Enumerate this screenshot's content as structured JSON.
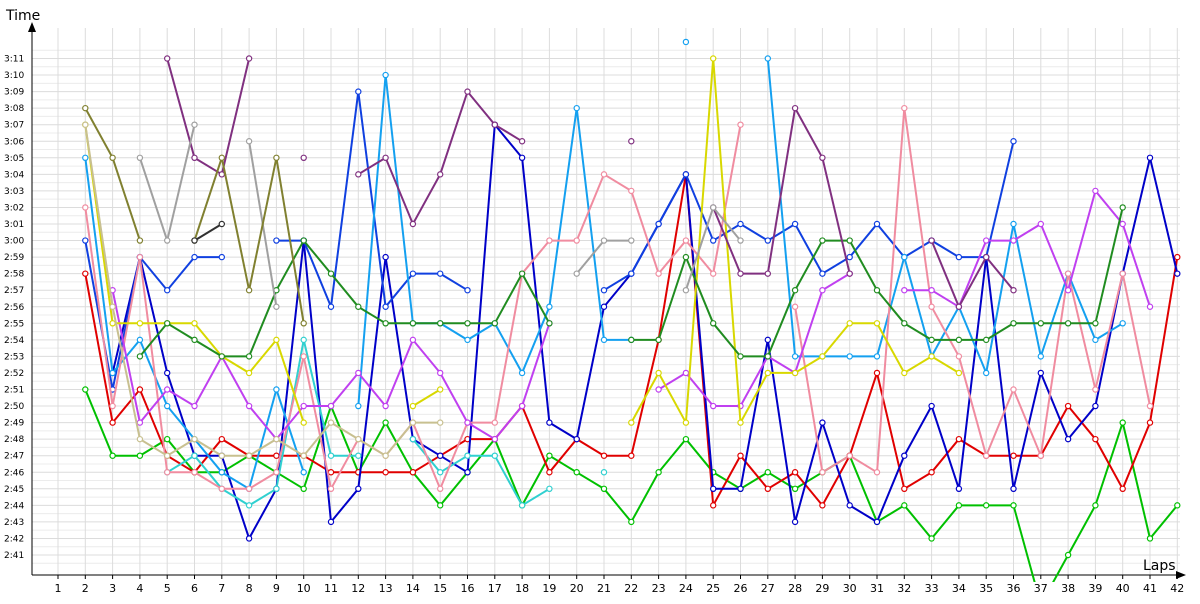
{
  "chart_data": {
    "type": "line",
    "ylabel": "Time",
    "xlabel": "Laps",
    "x": [
      1,
      2,
      3,
      4,
      5,
      6,
      7,
      8,
      9,
      10,
      11,
      12,
      13,
      14,
      15,
      16,
      17,
      18,
      19,
      20,
      21,
      22,
      23,
      24,
      25,
      26,
      27,
      28,
      29,
      30,
      31,
      32,
      33,
      34,
      35,
      36,
      37,
      38,
      39,
      40,
      41,
      42
    ],
    "x_ticks": [
      "1",
      "2",
      "3",
      "4",
      "5",
      "6",
      "7",
      "8",
      "9",
      "10",
      "11",
      "12",
      "13",
      "14",
      "15",
      "16",
      "17",
      "18",
      "19",
      "20",
      "21",
      "22",
      "23",
      "24",
      "25",
      "26",
      "27",
      "28",
      "29",
      "30",
      "31",
      "32",
      "33",
      "34",
      "35",
      "36",
      "37",
      "38",
      "39",
      "40",
      "41",
      "42"
    ],
    "y_ticks": [
      "2:41",
      "2:42",
      "2:43",
      "2:44",
      "2:45",
      "2:46",
      "2:47",
      "2:48",
      "2:49",
      "2:50",
      "2:51",
      "2:52",
      "2:53",
      "2:54",
      "2:55",
      "2:56",
      "2:57",
      "2:58",
      "2:59",
      "3:00",
      "3:01",
      "3:02",
      "3:03",
      "3:04",
      "3:05",
      "3:06",
      "3:07",
      "3:08",
      "3:09",
      "3:10",
      "3:11"
    ],
    "y_unit": "seconds",
    "ylim": [
      159,
      192
    ],
    "grid": true,
    "series": [
      {
        "color": "#00c000",
        "values": [
          null,
          171,
          167,
          167,
          168,
          166,
          166,
          167,
          166,
          165,
          170,
          166,
          169,
          166,
          164,
          166,
          168,
          164,
          167,
          166,
          165,
          163,
          166,
          168,
          166,
          165,
          166,
          165,
          166,
          167,
          163,
          164,
          162,
          164,
          164,
          164,
          158,
          161,
          164,
          169,
          162,
          164
        ]
      },
      {
        "color": "#e00000",
        "values": [
          null,
          178,
          169,
          171,
          167,
          166,
          168,
          167,
          167,
          167,
          166,
          166,
          166,
          166,
          167,
          168,
          168,
          170,
          166,
          168,
          167,
          167,
          174,
          184,
          164,
          167,
          165,
          166,
          164,
          167,
          172,
          165,
          166,
          168,
          167,
          167,
          167,
          170,
          168,
          165,
          169,
          179
        ]
      },
      {
        "color": "#0000c8",
        "values": [
          null,
          null,
          172,
          179,
          172,
          167,
          167,
          162,
          165,
          180,
          163,
          165,
          179,
          168,
          167,
          166,
          187,
          185,
          169,
          168,
          176,
          178,
          181,
          184,
          165,
          165,
          174,
          163,
          169,
          164,
          163,
          167,
          170,
          165,
          179,
          165,
          172,
          168,
          170,
          178,
          185,
          178
        ]
      },
      {
        "color": "#1040e0",
        "values": [
          null,
          180,
          171,
          179,
          177,
          179,
          179,
          null,
          180,
          180,
          176,
          189,
          176,
          178,
          178,
          177,
          null,
          null,
          null,
          null,
          177,
          178,
          181,
          184,
          180,
          181,
          180,
          181,
          178,
          179,
          181,
          179,
          180,
          179,
          179,
          186,
          null,
          null,
          null,
          null,
          null,
          null
        ]
      },
      {
        "color": "#14a0f0",
        "values": [
          null,
          185,
          172,
          174,
          170,
          168,
          166,
          165,
          171,
          166,
          null,
          170,
          190,
          175,
          175,
          174,
          175,
          172,
          176,
          188,
          174,
          174,
          null,
          192,
          null,
          null,
          191,
          173,
          173,
          173,
          173,
          179,
          173,
          176,
          172,
          181,
          173,
          178,
          174,
          175,
          null,
          null
        ]
      },
      {
        "color": "#30d0d0",
        "values": [
          null,
          null,
          null,
          null,
          166,
          167,
          165,
          164,
          165,
          174,
          167,
          167,
          null,
          168,
          166,
          167,
          167,
          164,
          165,
          null,
          166,
          null,
          null,
          null,
          null,
          null,
          null,
          null,
          null,
          null,
          null,
          null,
          null,
          null,
          null,
          null,
          null,
          null,
          null,
          null,
          null,
          null
        ]
      },
      {
        "color": "#f08ca0",
        "values": [
          null,
          182,
          170,
          179,
          166,
          166,
          165,
          165,
          166,
          173,
          165,
          168,
          167,
          169,
          165,
          169,
          169,
          178,
          180,
          180,
          184,
          183,
          178,
          180,
          178,
          187,
          null,
          176,
          166,
          167,
          166,
          188,
          176,
          173,
          167,
          171,
          167,
          178,
          171,
          178,
          170,
          null
        ]
      },
      {
        "color": "#c040f0",
        "values": [
          null,
          null,
          177,
          169,
          171,
          170,
          173,
          170,
          168,
          170,
          170,
          172,
          170,
          174,
          172,
          169,
          168,
          170,
          175,
          null,
          null,
          null,
          171,
          172,
          170,
          170,
          173,
          172,
          177,
          178,
          null,
          177,
          177,
          176,
          180,
          180,
          181,
          177,
          183,
          181,
          176,
          null
        ]
      },
      {
        "color": "#d8d800",
        "values": [
          null,
          187,
          175,
          175,
          175,
          175,
          173,
          172,
          174,
          169,
          null,
          null,
          null,
          170,
          171,
          null,
          null,
          null,
          null,
          null,
          null,
          169,
          172,
          169,
          191,
          169,
          172,
          172,
          173,
          175,
          175,
          172,
          173,
          172,
          null,
          null,
          null,
          null,
          null,
          null,
          null,
          null
        ]
      },
      {
        "color": "#208c20",
        "values": [
          null,
          null,
          null,
          173,
          175,
          174,
          173,
          173,
          177,
          180,
          178,
          176,
          175,
          175,
          175,
          175,
          175,
          178,
          175,
          null,
          null,
          174,
          174,
          179,
          175,
          173,
          173,
          177,
          180,
          180,
          177,
          175,
          174,
          174,
          174,
          175,
          175,
          175,
          175,
          182,
          null,
          null
        ]
      },
      {
        "color": "#803080",
        "values": [
          null,
          null,
          null,
          null,
          191,
          185,
          184,
          191,
          null,
          185,
          null,
          184,
          185,
          181,
          184,
          189,
          187,
          186,
          null,
          null,
          null,
          186,
          null,
          null,
          182,
          178,
          178,
          188,
          185,
          178,
          null,
          null,
          180,
          176,
          179,
          177,
          null,
          null,
          null,
          null,
          null,
          null
        ]
      },
      {
        "color": "#a0a0a0",
        "values": [
          null,
          null,
          null,
          185,
          180,
          187,
          null,
          186,
          176,
          null,
          null,
          null,
          null,
          null,
          null,
          null,
          null,
          null,
          null,
          178,
          180,
          180,
          null,
          177,
          182,
          180,
          null,
          null,
          null,
          null,
          null,
          null,
          null,
          null,
          null,
          null,
          null,
          null,
          null,
          null,
          null,
          null
        ]
      },
      {
        "color": "#808030",
        "values": [
          null,
          188,
          185,
          180,
          null,
          180,
          185,
          177,
          185,
          175,
          null,
          null,
          null,
          null,
          null,
          null,
          null,
          null,
          null,
          null,
          null,
          null,
          null,
          null,
          null,
          null,
          null,
          null,
          null,
          null,
          null,
          null,
          null,
          null,
          null,
          null,
          null,
          null,
          null,
          null,
          null,
          null
        ]
      },
      {
        "color": "#303030",
        "values": [
          null,
          null,
          null,
          null,
          null,
          180,
          181,
          null,
          null,
          null,
          null,
          null,
          null,
          null,
          null,
          null,
          null,
          null,
          null,
          null,
          null,
          null,
          null,
          null,
          null,
          null,
          null,
          null,
          null,
          null,
          null,
          null,
          null,
          null,
          null,
          null,
          null,
          null,
          null,
          null,
          null,
          null
        ]
      },
      {
        "color": "#c8c090",
        "values": [
          null,
          187,
          176,
          168,
          167,
          168,
          167,
          167,
          168,
          167,
          169,
          168,
          167,
          169,
          169,
          null,
          null,
          null,
          null,
          null,
          null,
          null,
          null,
          null,
          null,
          null,
          null,
          null,
          null,
          null,
          null,
          null,
          null,
          null,
          null,
          null,
          null,
          null,
          null,
          null,
          null,
          null
        ]
      }
    ]
  }
}
